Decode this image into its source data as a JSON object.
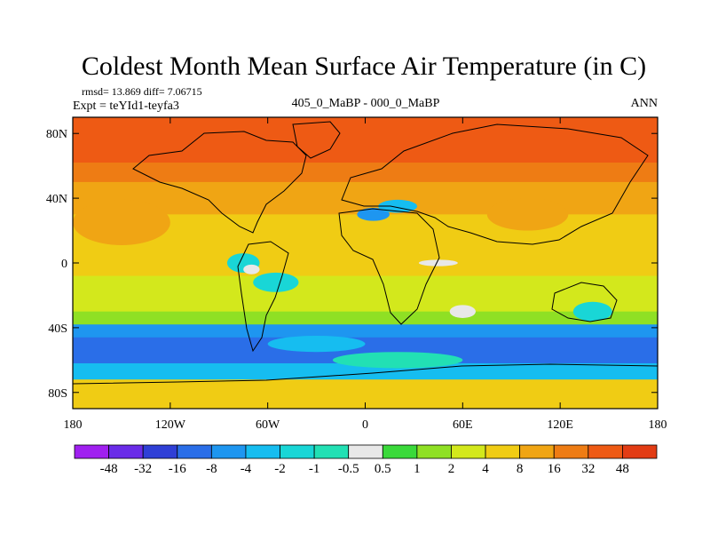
{
  "chart_data": {
    "type": "heatmap",
    "title": "Coldest Month Mean Surface Air Temperature (in C)",
    "stats": "rmsd= 13.869 diff= 7.06715",
    "experiment": "Expt = teYId1-teyfa3",
    "subtitle": "405_0_MaBP - 000_0_MaBP",
    "season": "ANN",
    "x_ticks": [
      "180",
      "120W",
      "60W",
      "0",
      "60E",
      "120E",
      "180"
    ],
    "x_tick_values": [
      -180,
      -120,
      -60,
      0,
      60,
      120,
      180
    ],
    "y_ticks": [
      "80N",
      "40N",
      "0",
      "40S",
      "80S"
    ],
    "y_tick_values": [
      80,
      40,
      0,
      -40,
      -80
    ],
    "xlim": [
      -180,
      180
    ],
    "ylim": [
      -90,
      90
    ],
    "colorbar": {
      "labels": [
        "-48",
        "-32",
        "-16",
        "-8",
        "-4",
        "-2",
        "-1",
        "-0.5",
        "0.5",
        "1",
        "2",
        "4",
        "8",
        "16",
        "32",
        "48"
      ],
      "colors": [
        "#a020f0",
        "#6a2ce8",
        "#2f3fd6",
        "#2a6ee8",
        "#1e96f0",
        "#16bdf0",
        "#19d6d6",
        "#22e0b4",
        "#e8e8e8",
        "#3ad93a",
        "#8fe024",
        "#d3e81c",
        "#f0cc14",
        "#f0a514",
        "#ee7c14",
        "#ee5a14",
        "#e23c14"
      ]
    },
    "field_bands": [
      {
        "lat_from": 90,
        "lat_to": 62,
        "value": 40
      },
      {
        "lat_from": 62,
        "lat_to": 50,
        "value": 20
      },
      {
        "lat_from": 50,
        "lat_to": 30,
        "value": 10
      },
      {
        "lat_from": 30,
        "lat_to": -8,
        "value": 6
      },
      {
        "lat_from": -8,
        "lat_to": -30,
        "value": 3
      },
      {
        "lat_from": -30,
        "lat_to": -38,
        "value": 1.5
      },
      {
        "lat_from": -38,
        "lat_to": -46,
        "value": -6
      },
      {
        "lat_from": -46,
        "lat_to": -62,
        "value": -10
      },
      {
        "lat_from": -62,
        "lat_to": -72,
        "value": -3
      },
      {
        "lat_from": -72,
        "lat_to": -90,
        "value": 5
      }
    ],
    "anomalies": [
      {
        "lon": 5,
        "lat": 30,
        "r_lon": 10,
        "r_lat": 4,
        "value": -6
      },
      {
        "lon": 20,
        "lat": 35,
        "r_lon": 12,
        "r_lat": 4,
        "value": -3
      },
      {
        "lon": -75,
        "lat": 0,
        "r_lon": 10,
        "r_lat": 6,
        "value": -1.5
      },
      {
        "lon": -55,
        "lat": -12,
        "r_lon": 14,
        "r_lat": 6,
        "value": -2
      },
      {
        "lon": -70,
        "lat": -4,
        "r_lon": 5,
        "r_lat": 3,
        "value": 0
      },
      {
        "lon": 60,
        "lat": -30,
        "r_lon": 8,
        "r_lat": 4,
        "value": 0
      },
      {
        "lon": 45,
        "lat": 0,
        "r_lon": 12,
        "r_lat": 2,
        "value": 0
      },
      {
        "lon": -150,
        "lat": 25,
        "r_lon": 30,
        "r_lat": 14,
        "value": 8
      },
      {
        "lon": 100,
        "lat": 30,
        "r_lon": 25,
        "r_lat": 10,
        "value": 12
      },
      {
        "lon": 140,
        "lat": -30,
        "r_lon": 12,
        "r_lat": 6,
        "value": -1.5
      },
      {
        "lon": -30,
        "lat": -50,
        "r_lon": 30,
        "r_lat": 5,
        "value": -3
      },
      {
        "lon": 20,
        "lat": -60,
        "r_lon": 40,
        "r_lat": 5,
        "value": -1
      }
    ]
  }
}
